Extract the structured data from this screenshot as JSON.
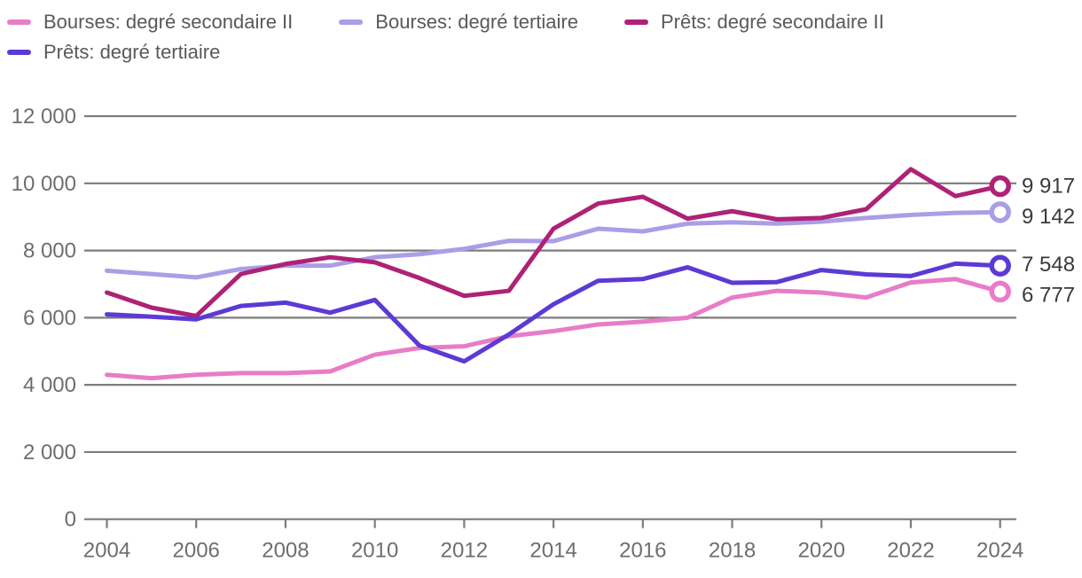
{
  "chart_data": {
    "type": "line",
    "title": "",
    "xlabel": "",
    "ylabel": "",
    "grid": true,
    "legend_position": "top-left",
    "x_range": [
      2004,
      2024
    ],
    "ylim": [
      0,
      12000
    ],
    "x": [
      2004,
      2005,
      2006,
      2007,
      2008,
      2009,
      2010,
      2011,
      2012,
      2013,
      2014,
      2015,
      2016,
      2017,
      2018,
      2019,
      2020,
      2021,
      2022,
      2023,
      2024
    ],
    "x_ticks": [
      {
        "value": 2004,
        "label": "2004"
      },
      {
        "value": 2006,
        "label": "2006"
      },
      {
        "value": 2008,
        "label": "2008"
      },
      {
        "value": 2010,
        "label": "2010"
      },
      {
        "value": 2012,
        "label": "2012"
      },
      {
        "value": 2014,
        "label": "2014"
      },
      {
        "value": 2016,
        "label": "2016"
      },
      {
        "value": 2018,
        "label": "2018"
      },
      {
        "value": 2020,
        "label": "2020"
      },
      {
        "value": 2022,
        "label": "2022"
      },
      {
        "value": 2024,
        "label": "2024"
      }
    ],
    "y_ticks": [
      {
        "value": 0,
        "label": "0"
      },
      {
        "value": 2000,
        "label": "2 000"
      },
      {
        "value": 4000,
        "label": "4 000"
      },
      {
        "value": 6000,
        "label": "6 000"
      },
      {
        "value": 8000,
        "label": "8 000"
      },
      {
        "value": 10000,
        "label": "10 000"
      },
      {
        "value": 12000,
        "label": "12 000"
      }
    ],
    "series": [
      {
        "name": "Bourses: degré secondaire II",
        "color": "#e87cc8",
        "end_label": "6 777",
        "values": [
          4300,
          4200,
          4300,
          4350,
          4350,
          4400,
          4900,
          5100,
          5150,
          5450,
          5600,
          5800,
          5880,
          6000,
          6600,
          6800,
          6750,
          6600,
          7050,
          7150,
          6777
        ]
      },
      {
        "name": "Bourses: degré tertiaire",
        "color": "#aa9ee6",
        "end_label": "9 142",
        "values": [
          7400,
          7300,
          7200,
          7450,
          7550,
          7550,
          7800,
          7890,
          8050,
          8290,
          8280,
          8650,
          8570,
          8800,
          8840,
          8800,
          8860,
          8970,
          9060,
          9120,
          9142
        ]
      },
      {
        "name": "Prêts: degré secondaire II",
        "color": "#ae2276",
        "end_label": "9 917",
        "values": [
          6750,
          6300,
          6050,
          7300,
          7600,
          7800,
          7650,
          7180,
          6650,
          6800,
          8650,
          9400,
          9600,
          8950,
          9170,
          8930,
          8970,
          9230,
          10420,
          9620,
          9917
        ]
      },
      {
        "name": "Prêts: degré tertiaire",
        "color": "#5b3ad5",
        "end_label": "7 548",
        "values": [
          6100,
          6030,
          5950,
          6350,
          6450,
          6150,
          6530,
          5170,
          4700,
          5500,
          6400,
          7100,
          7150,
          7500,
          7040,
          7060,
          7420,
          7290,
          7240,
          7610,
          7548
        ]
      }
    ]
  }
}
